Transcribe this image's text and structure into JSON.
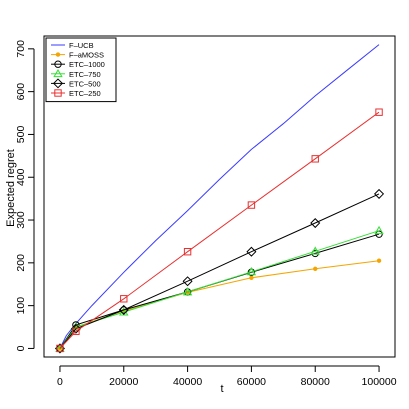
{
  "chart_data": {
    "type": "line",
    "title": "",
    "xlabel": "t",
    "ylabel": "Expected regret",
    "xlim": [
      -5000,
      105000
    ],
    "ylim": [
      -20,
      730
    ],
    "xticks": [
      0,
      20000,
      40000,
      60000,
      80000,
      100000
    ],
    "xtick_labels": [
      "0",
      "20000",
      "40000",
      "60000",
      "80000",
      "100000"
    ],
    "yticks": [
      0,
      100,
      200,
      300,
      400,
      500,
      600,
      700
    ],
    "ytick_labels": [
      "0",
      "100",
      "200",
      "300",
      "400",
      "500",
      "600",
      "700"
    ],
    "grid": false,
    "legend_position": "top-left",
    "series": [
      {
        "name": "F–UCB",
        "color": "#3b3bff",
        "marker": "none",
        "x": [
          0,
          2000,
          5000,
          10000,
          20000,
          30000,
          40000,
          50000,
          60000,
          70000,
          80000,
          90000,
          100000
        ],
        "y": [
          0,
          30,
          58,
          100,
          178,
          252,
          322,
          395,
          465,
          525,
          590,
          650,
          710
        ]
      },
      {
        "name": "F–aMOSS",
        "color": "#f5a500",
        "marker": "dot",
        "x": [
          0,
          5000,
          20000,
          40000,
          60000,
          80000,
          100000
        ],
        "y": [
          0,
          50,
          88,
          131,
          165,
          186,
          205
        ]
      },
      {
        "name": "ETC–1000",
        "color": "#000000",
        "marker": "circle",
        "x": [
          0,
          5000,
          20000,
          40000,
          60000,
          80000,
          100000
        ],
        "y": [
          0,
          55,
          90,
          132,
          178,
          222,
          267
        ]
      },
      {
        "name": "ETC–750",
        "color": "#33e033",
        "marker": "triangle",
        "x": [
          0,
          5000,
          20000,
          40000,
          60000,
          80000,
          100000
        ],
        "y": [
          0,
          50,
          85,
          132,
          179,
          227,
          275
        ]
      },
      {
        "name": "ETC–500",
        "color": "#000000",
        "marker": "diamond",
        "x": [
          0,
          5000,
          20000,
          40000,
          60000,
          80000,
          100000
        ],
        "y": [
          0,
          46,
          90,
          157,
          226,
          293,
          361
        ]
      },
      {
        "name": "ETC–250",
        "color": "#e83030",
        "marker": "square",
        "x": [
          0,
          5000,
          20000,
          40000,
          60000,
          80000,
          100000
        ],
        "y": [
          0,
          40,
          116,
          226,
          335,
          443,
          552
        ]
      }
    ]
  }
}
